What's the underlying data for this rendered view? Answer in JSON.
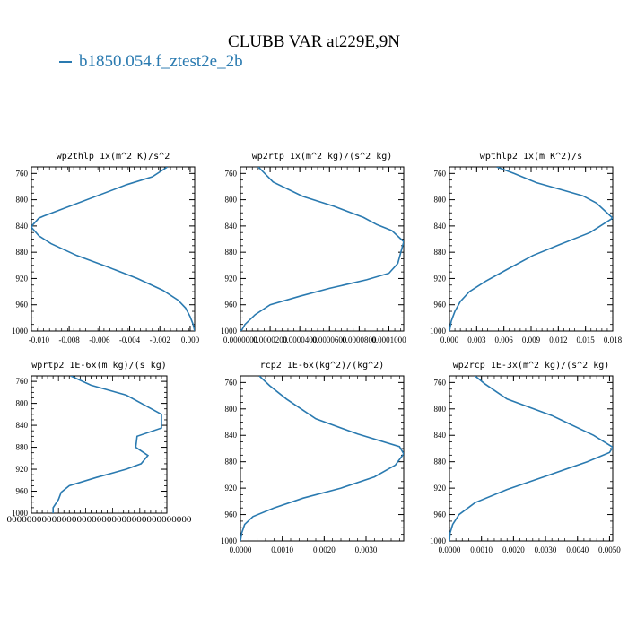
{
  "figure": {
    "title": "CLUBB VAR at229E,9N",
    "legend": [
      {
        "label": "b1850.054.f_ztest2e_2b",
        "color": "#2a7ab0"
      }
    ]
  },
  "colors": {
    "series": "#2a7ab0",
    "axis": "#000000"
  },
  "chart_data": [
    {
      "type": "line",
      "title": "wp2thlp  1x(m^2 K)/s^2",
      "xlim": [
        -0.0105,
        0.0003
      ],
      "ylim": [
        1000,
        750
      ],
      "xticks": [
        -0.01,
        -0.008,
        -0.006,
        -0.004,
        -0.002,
        0.0
      ],
      "xtick_labels": [
        "-0.010",
        "-0.008",
        "-0.006",
        "-0.004",
        "-0.002",
        "0.000"
      ],
      "yticks": [
        760,
        800,
        840,
        880,
        920,
        960,
        1000
      ],
      "series": [
        {
          "name": "b1850.054.f_ztest2e_2b",
          "x": [
            -0.0015,
            -0.0025,
            -0.0042,
            -0.0097,
            -0.01,
            -0.0104,
            -0.0105,
            -0.01,
            -0.0092,
            -0.0075,
            -0.0055,
            -0.0035,
            -0.0018,
            -0.0008,
            -0.0003,
            0.0,
            0.0002,
            0.0003
          ],
          "y": [
            750,
            765,
            777,
            825,
            828,
            838,
            842,
            855,
            867,
            885,
            902,
            920,
            938,
            953,
            965,
            978,
            990,
            1000
          ]
        }
      ]
    },
    {
      "type": "line",
      "title": "wp2rtp  1x(m^2 kg)/(s^2 kg)",
      "xlim": [
        0.0,
        0.00011
      ],
      "ylim": [
        1000,
        750
      ],
      "xticks": [
        0.0,
        2e-05,
        4e-05,
        6e-05,
        8e-05,
        0.0001
      ],
      "xtick_labels": [
        "0.0000000",
        "0.0000200",
        "0.0000400",
        "0.0000600",
        "0.0000800",
        "0.0001000"
      ],
      "yticks": [
        760,
        800,
        840,
        880,
        920,
        960,
        1000
      ],
      "series": [
        {
          "name": "b1850.054.f_ztest2e_2b",
          "x": [
            1.2e-05,
            2.2e-05,
            4.2e-05,
            6.3e-05,
            8.3e-05,
            9.2e-05,
            0.000102,
            0.00011,
            0.000106,
            0.0001,
            8.5e-05,
            6e-05,
            4e-05,
            2e-05,
            1e-05,
            3e-06,
            1e-06,
            0.0
          ],
          "y": [
            750,
            773,
            795,
            810,
            827,
            838,
            847,
            864,
            897,
            912,
            922,
            935,
            947,
            960,
            975,
            990,
            998,
            1000
          ]
        }
      ]
    },
    {
      "type": "line",
      "title": "wpthlp2  1x(m K^2)/s",
      "xlim": [
        0.0,
        0.018
      ],
      "ylim": [
        1000,
        750
      ],
      "xticks": [
        0.0,
        0.003,
        0.006,
        0.009,
        0.012,
        0.015,
        0.018
      ],
      "xtick_labels": [
        "0.000",
        "0.003",
        "0.006",
        "0.009",
        "0.012",
        "0.015",
        "0.018"
      ],
      "yticks": [
        760,
        800,
        840,
        880,
        920,
        960,
        1000
      ],
      "series": [
        {
          "name": "b1850.054.f_ztest2e_2b",
          "x": [
            0.0052,
            0.0071,
            0.0096,
            0.0147,
            0.0162,
            0.018,
            0.0155,
            0.0122,
            0.0092,
            0.0065,
            0.004,
            0.0022,
            0.0012,
            0.0006,
            0.0002,
            0.0
          ],
          "y": [
            750,
            760,
            774,
            794,
            805,
            828,
            850,
            868,
            885,
            905,
            924,
            940,
            955,
            970,
            985,
            1000
          ]
        }
      ]
    },
    {
      "type": "line",
      "title": "wprtp2  1E-6x(m kg)/(s kg)",
      "xlim": [
        -0.0001,
        0.0004
      ],
      "ylim": [
        1000,
        750
      ],
      "xticks": [],
      "xtick_labels": [
        "0000000000000000000000000000000000000"
      ],
      "yticks": [
        760,
        800,
        840,
        880,
        920,
        960,
        1000
      ],
      "series": [
        {
          "name": "b1850.054.f_ztest2e_2b",
          "x": [
            4.5e-05,
            0.00012,
            0.00025,
            0.00038,
            0.00038,
            0.00029,
            0.000285,
            0.00033,
            0.000305,
            0.00025,
            0.00014,
            4e-05,
            1e-05,
            0.0,
            -2e-05,
            -2e-05
          ],
          "y": [
            750,
            767,
            785,
            820,
            845,
            860,
            880,
            895,
            910,
            920,
            935,
            950,
            962,
            975,
            990,
            1000
          ]
        }
      ]
    },
    {
      "type": "line",
      "title": "rcp2  1E-6x(kg^2)/(kg^2)",
      "xlim": [
        0.0,
        0.0039
      ],
      "ylim": [
        1000,
        750
      ],
      "xticks": [
        0.0,
        0.001,
        0.002,
        0.003
      ],
      "xtick_labels": [
        "0.0000",
        "0.0010",
        "0.0020",
        "0.0030"
      ],
      "yticks": [
        760,
        800,
        840,
        880,
        920,
        960,
        1000
      ],
      "series": [
        {
          "name": "b1850.054.f_ztest2e_2b",
          "x": [
            0.00045,
            0.0007,
            0.0011,
            0.0018,
            0.0028,
            0.0038,
            0.0039,
            0.0037,
            0.0032,
            0.0024,
            0.0015,
            0.0008,
            0.0003,
            0.0001,
            3e-05,
            0.0
          ],
          "y": [
            750,
            765,
            785,
            815,
            838,
            857,
            868,
            885,
            903,
            920,
            935,
            950,
            963,
            975,
            988,
            1000
          ]
        }
      ]
    },
    {
      "type": "line",
      "title": "wp2rcp  1E-3x(m^2 kg)/(s^2 kg)",
      "xlim": [
        0.0,
        0.0051
      ],
      "ylim": [
        1000,
        750
      ],
      "xticks": [
        0.0,
        0.001,
        0.002,
        0.003,
        0.004,
        0.005
      ],
      "xtick_labels": [
        "0.0000",
        "0.0010",
        "0.0020",
        "0.0030",
        "0.0040",
        "0.0050"
      ],
      "yticks": [
        760,
        800,
        840,
        880,
        920,
        960,
        1000
      ],
      "series": [
        {
          "name": "b1850.054.f_ztest2e_2b",
          "x": [
            0.0008,
            0.0011,
            0.0018,
            0.0032,
            0.0045,
            0.0051,
            0.005,
            0.0043,
            0.003,
            0.0018,
            0.0008,
            0.0003,
            0.0001,
            2e-05,
            0.0
          ],
          "y": [
            750,
            762,
            785,
            810,
            840,
            858,
            866,
            880,
            902,
            922,
            942,
            960,
            975,
            988,
            1000
          ]
        }
      ]
    }
  ]
}
